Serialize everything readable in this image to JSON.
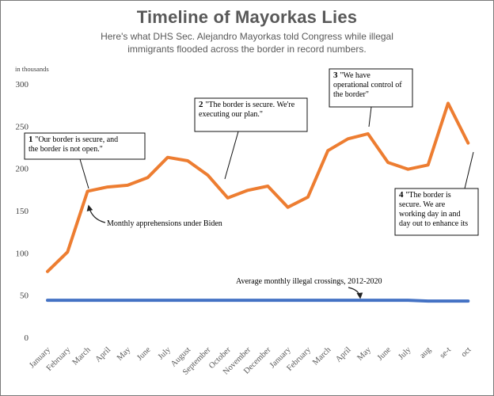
{
  "title": "Timeline of Mayorkas Lies",
  "subtitle": "Here's what DHS Sec. Alejandro Mayorkas told Congress while illegal immigrants flooded across the border in record numbers.",
  "colors": {
    "apprehensions": "#ed7d31",
    "average": "#4472c4",
    "text": "#595959"
  },
  "chart_data": {
    "type": "line",
    "title": "Timeline of Mayorkas Lies",
    "ylabel": "in thousands",
    "xlabel": "",
    "ylim": [
      0,
      300
    ],
    "yticks": [
      0,
      50,
      100,
      150,
      200,
      250,
      300
    ],
    "grid": false,
    "categories": [
      "January",
      "February",
      "March",
      "April",
      "May",
      "June",
      "July",
      "August",
      "September",
      "October",
      "November",
      "December",
      "January",
      "February",
      "March",
      "April",
      "May",
      "June",
      "July",
      "aug",
      "se-t",
      "oct"
    ],
    "series": [
      {
        "name": "Monthly apprehensions under Biden",
        "values": [
          78,
          101,
          173,
          178,
          180,
          189,
          213,
          209,
          192,
          165,
          174,
          179,
          154,
          166,
          221,
          235,
          241,
          207,
          199,
          204,
          277,
          230
        ]
      },
      {
        "name": "Average monthly illegal crossings, 2012-2020",
        "values": [
          44,
          44,
          44,
          44,
          44,
          44,
          44,
          44,
          44,
          44,
          44,
          44,
          44,
          44,
          44,
          44,
          44,
          44,
          44,
          43,
          43,
          43
        ]
      }
    ],
    "annotations": [
      {
        "number": "1",
        "lines": [
          "\"Our border is secure, and",
          "the border is not open.\""
        ],
        "category_index": 2
      },
      {
        "number": "2",
        "lines": [
          "\"The border is secure. We're",
          "executing our plan.\""
        ],
        "category_index": 8
      },
      {
        "number": "3",
        "lines": [
          "\"We have",
          "operational control of",
          "the border\""
        ],
        "category_index": 16
      },
      {
        "number": "4",
        "lines": [
          "\"The border is",
          "secure. We are",
          "working day in and",
          "day out to enhance its"
        ],
        "category_index": 21
      }
    ]
  }
}
